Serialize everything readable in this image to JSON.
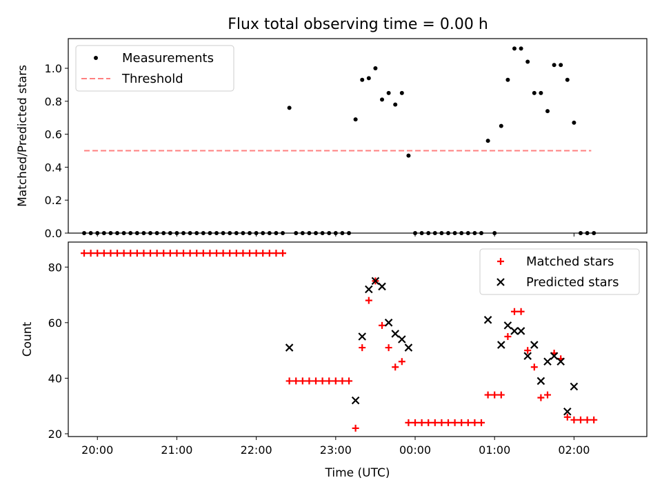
{
  "figure_title": "Flux total observing time = 0.00 h",
  "chart_data": [
    {
      "type": "scatter",
      "title": "Flux total observing time = 0.00 h",
      "xlabel": "",
      "ylabel": "Matched/Predicted stars",
      "x_axis": "time (UTC), shared with lower panel",
      "xlim": [
        "19:38",
        "02:55"
      ],
      "ylim": [
        0,
        1.18
      ],
      "yticks": [
        "0.0",
        "0.2",
        "0.4",
        "0.6",
        "0.8",
        "1.0"
      ],
      "grid": false,
      "legend": "upper-left",
      "threshold": {
        "name": "Threshold",
        "value": 0.5,
        "x": [
          "19:50",
          "02:13"
        ],
        "color": "#ff7f7f",
        "style": "dashed"
      },
      "series": [
        {
          "name": "Measurements",
          "color": "#000000",
          "marker": "dot",
          "points": [
            [
              "19:50",
              0
            ],
            [
              "19:55",
              0
            ],
            [
              "20:00",
              0
            ],
            [
              "20:05",
              0
            ],
            [
              "20:10",
              0
            ],
            [
              "20:15",
              0
            ],
            [
              "20:20",
              0
            ],
            [
              "20:25",
              0
            ],
            [
              "20:30",
              0
            ],
            [
              "20:35",
              0
            ],
            [
              "20:40",
              0
            ],
            [
              "20:45",
              0
            ],
            [
              "20:50",
              0
            ],
            [
              "20:55",
              0
            ],
            [
              "21:00",
              0
            ],
            [
              "21:05",
              0
            ],
            [
              "21:10",
              0
            ],
            [
              "21:15",
              0
            ],
            [
              "21:20",
              0
            ],
            [
              "21:25",
              0
            ],
            [
              "21:30",
              0
            ],
            [
              "21:35",
              0
            ],
            [
              "21:40",
              0
            ],
            [
              "21:45",
              0
            ],
            [
              "21:50",
              0
            ],
            [
              "21:55",
              0
            ],
            [
              "22:00",
              0
            ],
            [
              "22:05",
              0
            ],
            [
              "22:10",
              0
            ],
            [
              "22:15",
              0
            ],
            [
              "22:20",
              0
            ],
            [
              "22:25",
              0.76
            ],
            [
              "22:30",
              0
            ],
            [
              "22:35",
              0
            ],
            [
              "22:40",
              0
            ],
            [
              "22:45",
              0
            ],
            [
              "22:50",
              0
            ],
            [
              "22:55",
              0
            ],
            [
              "23:00",
              0
            ],
            [
              "23:05",
              0
            ],
            [
              "23:10",
              0
            ],
            [
              "23:15",
              0.69
            ],
            [
              "23:20",
              0.93
            ],
            [
              "23:25",
              0.94
            ],
            [
              "23:30",
              1.0
            ],
            [
              "23:35",
              0.81
            ],
            [
              "23:40",
              0.85
            ],
            [
              "23:45",
              0.78
            ],
            [
              "23:50",
              0.85
            ],
            [
              "23:55",
              0.47
            ],
            [
              "00:00",
              0
            ],
            [
              "00:05",
              0
            ],
            [
              "00:10",
              0
            ],
            [
              "00:15",
              0
            ],
            [
              "00:20",
              0
            ],
            [
              "00:25",
              0
            ],
            [
              "00:30",
              0
            ],
            [
              "00:35",
              0
            ],
            [
              "00:40",
              0
            ],
            [
              "00:45",
              0
            ],
            [
              "00:50",
              0
            ],
            [
              "00:55",
              0.56
            ],
            [
              "01:00",
              0
            ],
            [
              "01:05",
              0.65
            ],
            [
              "01:10",
              0.93
            ],
            [
              "01:15",
              1.12
            ],
            [
              "01:20",
              1.12
            ],
            [
              "01:25",
              1.04
            ],
            [
              "01:30",
              0.85
            ],
            [
              "01:35",
              0.85
            ],
            [
              "01:40",
              0.74
            ],
            [
              "01:45",
              1.02
            ],
            [
              "01:50",
              1.02
            ],
            [
              "01:55",
              0.93
            ],
            [
              "02:00",
              0.67
            ],
            [
              "02:05",
              0
            ],
            [
              "02:10",
              0
            ],
            [
              "02:15",
              0
            ]
          ]
        }
      ],
      "legend_entries": [
        "Measurements",
        "Threshold"
      ]
    },
    {
      "type": "scatter",
      "title": "",
      "xlabel": "Time (UTC)",
      "ylabel": "Count",
      "xlim": [
        "19:38",
        "02:55"
      ],
      "xticks": [
        "20:00",
        "21:00",
        "22:00",
        "23:00",
        "00:00",
        "01:00",
        "02:00"
      ],
      "ylim": [
        19,
        89
      ],
      "yticks": [
        "20",
        "40",
        "60",
        "80"
      ],
      "grid": false,
      "legend": "upper-right",
      "series": [
        {
          "name": "Matched stars",
          "color": "#ff0000",
          "marker": "plus",
          "points": [
            [
              "19:50",
              85
            ],
            [
              "19:55",
              85
            ],
            [
              "20:00",
              85
            ],
            [
              "20:05",
              85
            ],
            [
              "20:10",
              85
            ],
            [
              "20:15",
              85
            ],
            [
              "20:20",
              85
            ],
            [
              "20:25",
              85
            ],
            [
              "20:30",
              85
            ],
            [
              "20:35",
              85
            ],
            [
              "20:40",
              85
            ],
            [
              "20:45",
              85
            ],
            [
              "20:50",
              85
            ],
            [
              "20:55",
              85
            ],
            [
              "21:00",
              85
            ],
            [
              "21:05",
              85
            ],
            [
              "21:10",
              85
            ],
            [
              "21:15",
              85
            ],
            [
              "21:20",
              85
            ],
            [
              "21:25",
              85
            ],
            [
              "21:30",
              85
            ],
            [
              "21:35",
              85
            ],
            [
              "21:40",
              85
            ],
            [
              "21:45",
              85
            ],
            [
              "21:50",
              85
            ],
            [
              "21:55",
              85
            ],
            [
              "22:00",
              85
            ],
            [
              "22:05",
              85
            ],
            [
              "22:10",
              85
            ],
            [
              "22:15",
              85
            ],
            [
              "22:20",
              85
            ],
            [
              "22:25",
              39
            ],
            [
              "22:30",
              39
            ],
            [
              "22:35",
              39
            ],
            [
              "22:40",
              39
            ],
            [
              "22:45",
              39
            ],
            [
              "22:50",
              39
            ],
            [
              "22:55",
              39
            ],
            [
              "23:00",
              39
            ],
            [
              "23:05",
              39
            ],
            [
              "23:10",
              39
            ],
            [
              "23:15",
              22
            ],
            [
              "23:20",
              51
            ],
            [
              "23:25",
              68
            ],
            [
              "23:30",
              75
            ],
            [
              "23:35",
              59
            ],
            [
              "23:40",
              51
            ],
            [
              "23:45",
              44
            ],
            [
              "23:50",
              46
            ],
            [
              "23:55",
              24
            ],
            [
              "00:00",
              24
            ],
            [
              "00:05",
              24
            ],
            [
              "00:10",
              24
            ],
            [
              "00:15",
              24
            ],
            [
              "00:20",
              24
            ],
            [
              "00:25",
              24
            ],
            [
              "00:30",
              24
            ],
            [
              "00:35",
              24
            ],
            [
              "00:40",
              24
            ],
            [
              "00:45",
              24
            ],
            [
              "00:50",
              24
            ],
            [
              "00:55",
              34
            ],
            [
              "01:00",
              34
            ],
            [
              "01:05",
              34
            ],
            [
              "01:10",
              55
            ],
            [
              "01:15",
              64
            ],
            [
              "01:20",
              64
            ],
            [
              "01:25",
              50
            ],
            [
              "01:30",
              44
            ],
            [
              "01:35",
              33
            ],
            [
              "01:40",
              34
            ],
            [
              "01:45",
              49
            ],
            [
              "01:50",
              47
            ],
            [
              "01:55",
              26
            ],
            [
              "02:00",
              25
            ],
            [
              "02:05",
              25
            ],
            [
              "02:10",
              25
            ],
            [
              "02:15",
              25
            ]
          ]
        },
        {
          "name": "Predicted stars",
          "color": "#000000",
          "marker": "x",
          "points": [
            [
              "22:25",
              51
            ],
            [
              "23:15",
              32
            ],
            [
              "23:20",
              55
            ],
            [
              "23:25",
              72
            ],
            [
              "23:30",
              75
            ],
            [
              "23:35",
              73
            ],
            [
              "23:40",
              60
            ],
            [
              "23:45",
              56
            ],
            [
              "23:50",
              54
            ],
            [
              "23:55",
              51
            ],
            [
              "00:55",
              61
            ],
            [
              "01:05",
              52
            ],
            [
              "01:10",
              59
            ],
            [
              "01:15",
              57
            ],
            [
              "01:20",
              57
            ],
            [
              "01:25",
              48
            ],
            [
              "01:30",
              52
            ],
            [
              "01:35",
              39
            ],
            [
              "01:40",
              46
            ],
            [
              "01:45",
              48
            ],
            [
              "01:50",
              46
            ],
            [
              "01:55",
              28
            ],
            [
              "02:00",
              37
            ]
          ]
        }
      ],
      "legend_entries": [
        "Matched stars",
        "Predicted stars"
      ]
    }
  ]
}
